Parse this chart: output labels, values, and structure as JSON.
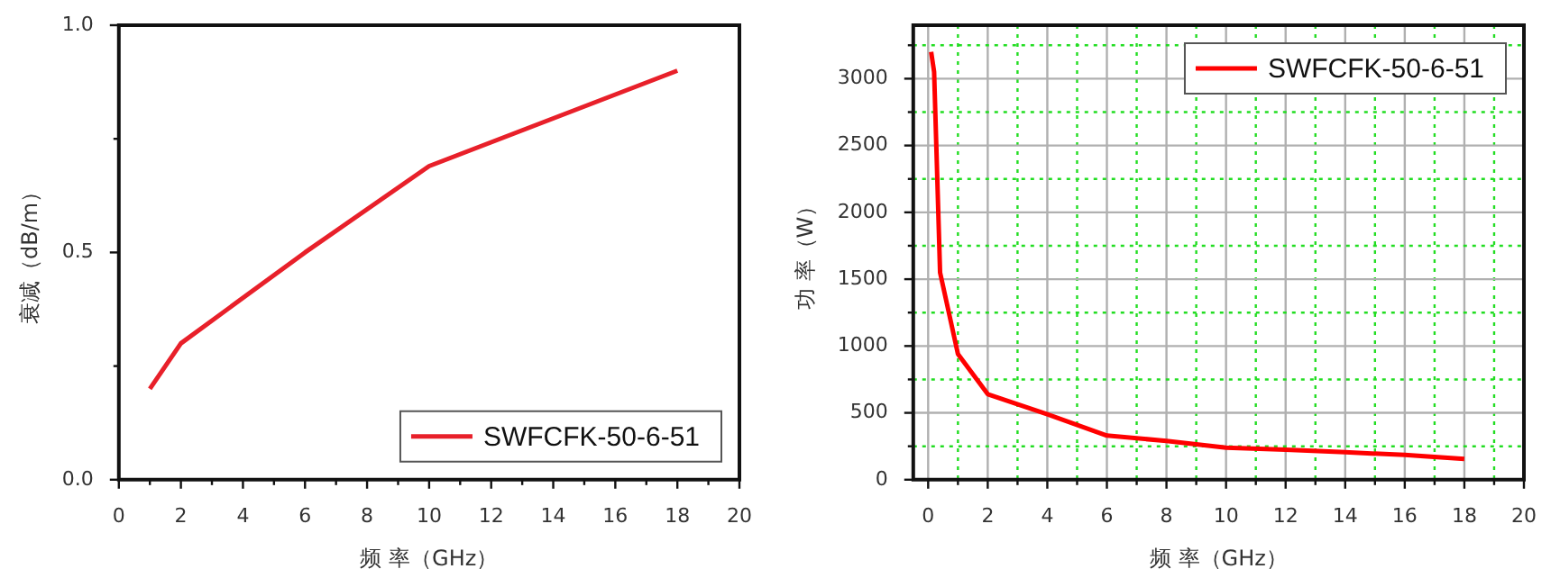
{
  "chart_data": [
    {
      "type": "line",
      "xlabel": "频 率（GHz）",
      "ylabel": "衰减（dB/m）",
      "xlim": [
        0,
        20
      ],
      "xticks": [
        0,
        {
          "value": 1,
          "label": null
        },
        2,
        {
          "value": 3,
          "label": null
        },
        4,
        {
          "value": 5,
          "label": null
        },
        6,
        {
          "value": 7,
          "label": null
        },
        8,
        {
          "value": 9,
          "label": null
        },
        10,
        {
          "value": 11,
          "label": null
        },
        12,
        {
          "value": 13,
          "label": null
        },
        14,
        {
          "value": 15,
          "label": null
        },
        16,
        {
          "value": 17,
          "label": null
        },
        18,
        {
          "value": 19,
          "label": null
        },
        20
      ],
      "ylim": [
        0,
        1
      ],
      "yticks": [
        {
          "value": 0,
          "label": "0.0"
        },
        {
          "value": 0.25,
          "label": null
        },
        {
          "value": 0.5,
          "label": "0.5"
        },
        {
          "value": 0.75,
          "label": null
        },
        {
          "value": 1,
          "label": "1.0"
        }
      ],
      "x": [
        1,
        2,
        6,
        10,
        18
      ],
      "series": [
        {
          "name": "SWFCFK-50-6-51",
          "color": "#e8202a",
          "values": [
            0.2,
            0.3,
            0.5,
            0.69,
            0.9
          ]
        }
      ],
      "legend": "bottom right",
      "grid": false,
      "marker": "none",
      "line_style": "solid"
    },
    {
      "type": "line",
      "xlabel": "频 率（GHz）",
      "ylabel": "功 率（W）",
      "xlim": [
        -0.5,
        20
      ],
      "xticks": [
        0,
        {
          "value": 1,
          "label": null
        },
        2,
        {
          "value": 3,
          "label": null
        },
        4,
        {
          "value": 5,
          "label": null
        },
        6,
        {
          "value": 7,
          "label": null
        },
        8,
        {
          "value": 9,
          "label": null
        },
        10,
        {
          "value": 11,
          "label": null
        },
        12,
        {
          "value": 13,
          "label": null
        },
        14,
        {
          "value": 15,
          "label": null
        },
        16,
        {
          "value": 17,
          "label": null
        },
        18,
        {
          "value": 19,
          "label": null
        },
        20
      ],
      "ylim": [
        0,
        3400
      ],
      "yticks": [
        0,
        {
          "value": 250,
          "label": null
        },
        500,
        {
          "value": 750,
          "label": null
        },
        1000,
        {
          "value": 1250,
          "label": null
        },
        1500,
        {
          "value": 1750,
          "label": null
        },
        2000,
        {
          "value": 2250,
          "label": null
        },
        2500,
        {
          "value": 2750,
          "label": null
        },
        3000,
        {
          "value": 3250,
          "label": null
        }
      ],
      "x": [
        0.1,
        0.2,
        0.4,
        1,
        2,
        4,
        6,
        8,
        10,
        12,
        14,
        16,
        18
      ],
      "series": [
        {
          "name": "SWFCFK-50-6-51",
          "color": "#ff0000",
          "values": [
            3200,
            3050,
            1550,
            940,
            640,
            490,
            330,
            290,
            240,
            225,
            205,
            185,
            155
          ]
        }
      ],
      "legend": "top right",
      "grid": true,
      "marker": "none",
      "line_style": "solid"
    }
  ]
}
